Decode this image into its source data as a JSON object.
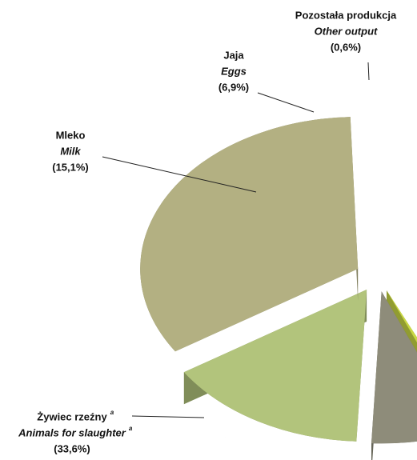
{
  "chart_data": {
    "type": "pie",
    "categories": [
      "Żywiec rzeźny",
      "Mleko",
      "Jaja",
      "Pozostała produkcja"
    ],
    "categories_en": [
      "Animals for slaughter",
      "Milk",
      "Eggs",
      "Other output"
    ],
    "category_notes": [
      "a",
      null,
      null,
      null
    ],
    "values": [
      33.6,
      15.1,
      6.9,
      0.6
    ],
    "value_labels": [
      "(33,6%)",
      "(15,1%)",
      "(6,9%)",
      "(0,6%)"
    ],
    "colors": [
      "#b3b082",
      "#b2c47c",
      "#8e8c7a",
      "#c9d844"
    ]
  }
}
